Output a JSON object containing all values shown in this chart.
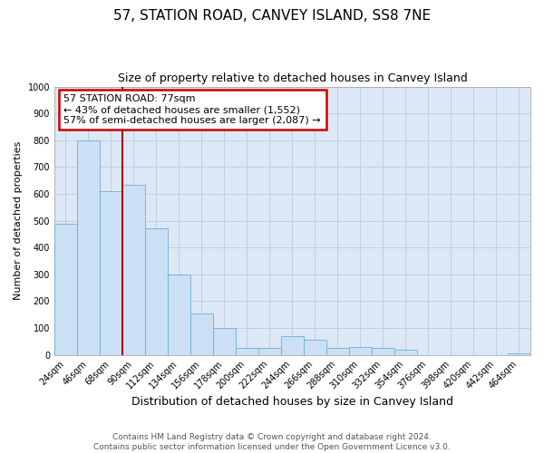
{
  "title": "57, STATION ROAD, CANVEY ISLAND, SS8 7NE",
  "subtitle": "Size of property relative to detached houses in Canvey Island",
  "xlabel": "Distribution of detached houses by size in Canvey Island",
  "ylabel": "Number of detached properties",
  "bar_labels": [
    "24sqm",
    "46sqm",
    "68sqm",
    "90sqm",
    "112sqm",
    "134sqm",
    "156sqm",
    "178sqm",
    "200sqm",
    "222sqm",
    "244sqm",
    "266sqm",
    "288sqm",
    "310sqm",
    "332sqm",
    "354sqm",
    "376sqm",
    "398sqm",
    "420sqm",
    "442sqm",
    "464sqm"
  ],
  "bar_values": [
    490,
    800,
    610,
    635,
    470,
    300,
    155,
    100,
    25,
    25,
    70,
    55,
    25,
    30,
    25,
    20,
    0,
    0,
    0,
    0,
    5
  ],
  "bar_color": "#cce0f5",
  "bar_edgecolor": "#6baed6",
  "vline_color": "#aa0000",
  "annotation_box_text": "57 STATION ROAD: 77sqm\n← 43% of detached houses are smaller (1,552)\n57% of semi-detached houses are larger (2,087) →",
  "annotation_box_edgecolor": "#cc0000",
  "ylim": [
    0,
    1000
  ],
  "yticks": [
    0,
    100,
    200,
    300,
    400,
    500,
    600,
    700,
    800,
    900,
    1000
  ],
  "grid_color": "#b8cfe8",
  "background_color": "#dce8f5",
  "footer_text": "Contains HM Land Registry data © Crown copyright and database right 2024.\nContains public sector information licensed under the Open Government Licence v3.0.",
  "title_fontsize": 11,
  "subtitle_fontsize": 9,
  "xlabel_fontsize": 9,
  "ylabel_fontsize": 8,
  "tick_fontsize": 7,
  "annotation_fontsize": 8,
  "footer_fontsize": 6.5
}
